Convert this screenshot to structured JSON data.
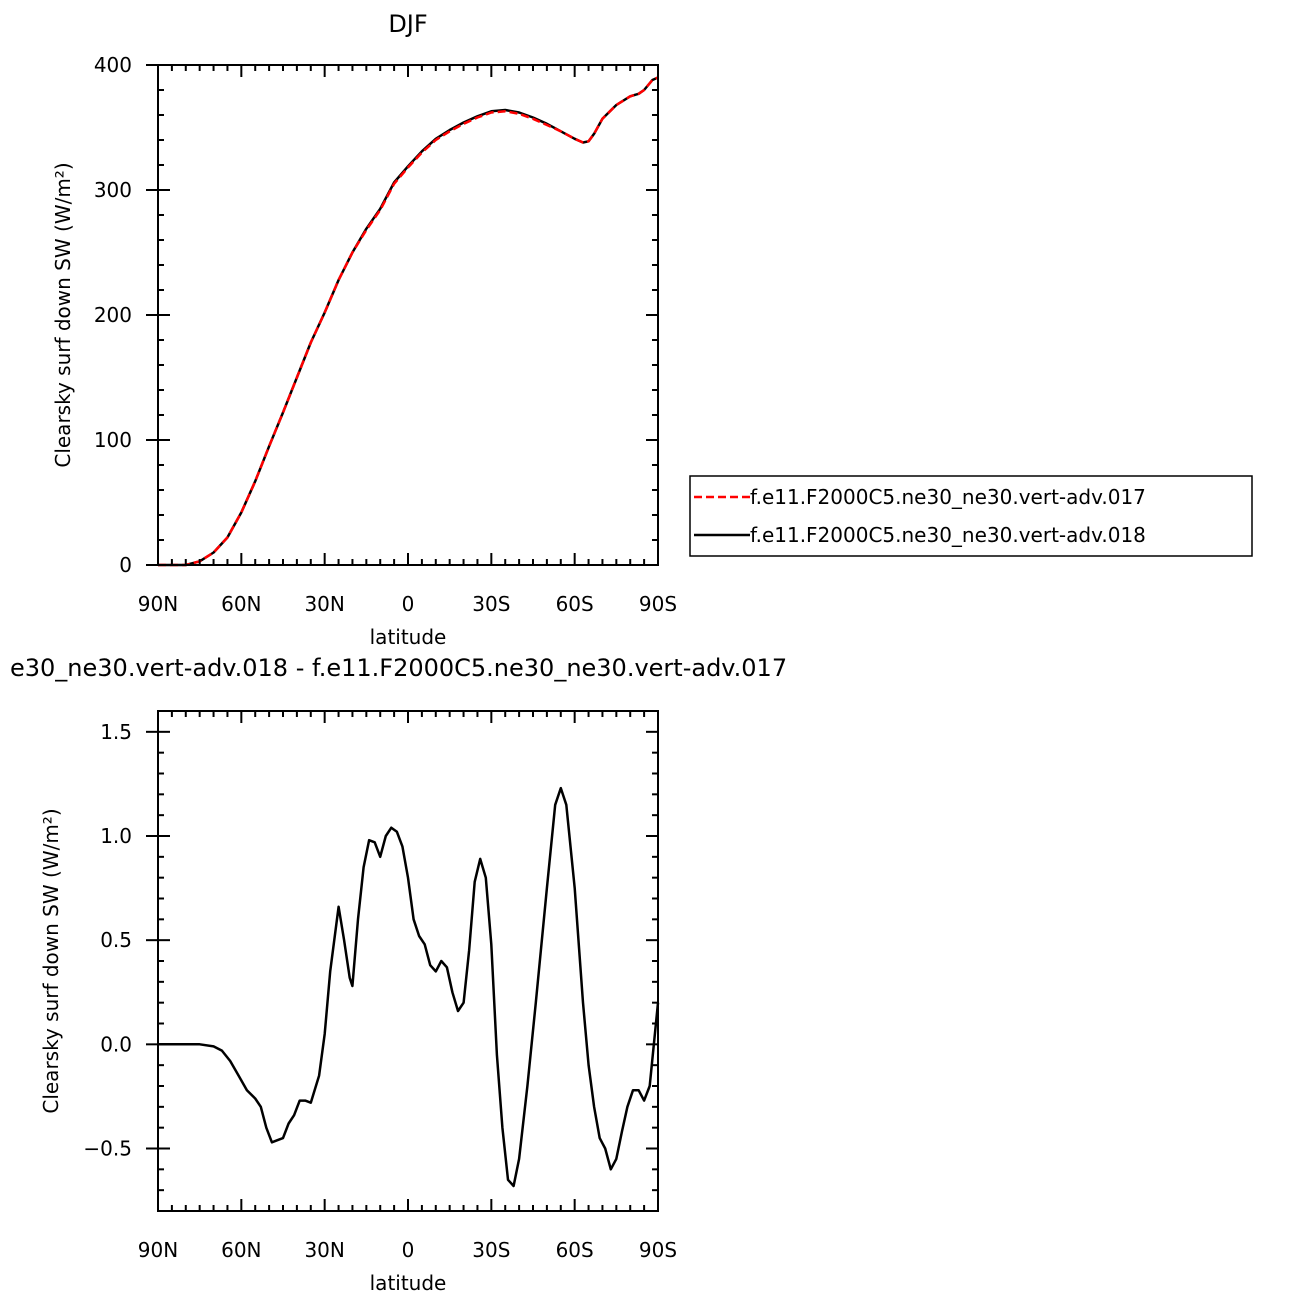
{
  "chart_data": [
    {
      "type": "line",
      "title": "DJF",
      "xlabel": "latitude",
      "ylabel": "Clearsky surf down SW (W/m²)",
      "xlim": [
        -90,
        90
      ],
      "ylim": [
        0,
        400
      ],
      "xticks": [
        -90,
        -60,
        -30,
        0,
        30,
        60,
        90
      ],
      "xtick_labels": [
        "90N",
        "60N",
        "30N",
        "0",
        "30S",
        "60S",
        "90S"
      ],
      "yticks": [
        0,
        100,
        200,
        300,
        400
      ],
      "ytick_labels": [
        "0",
        "100",
        "200",
        "300",
        "400"
      ],
      "legend_position": "right",
      "grid": false,
      "series": [
        {
          "name": "f.e11.F2000C5.ne30_ne30.vert-adv.017",
          "color": "#ff0000",
          "dash": "dashed",
          "x": [
            -90,
            -85,
            -80,
            -75,
            -70,
            -65,
            -60,
            -55,
            -50,
            -45,
            -40,
            -35,
            -30,
            -25,
            -20,
            -15,
            -10,
            -5,
            0,
            5,
            10,
            15,
            20,
            25,
            30,
            35,
            40,
            45,
            50,
            55,
            60,
            63,
            65,
            67,
            70,
            75,
            80,
            83,
            85,
            88,
            90
          ],
          "y": [
            0,
            0,
            0,
            3,
            10,
            22,
            42,
            67,
            95,
            122,
            150,
            178,
            202,
            228,
            250,
            268,
            284,
            305,
            318,
            330,
            340,
            347,
            353,
            358,
            362,
            363,
            361,
            357,
            352,
            347,
            341,
            338,
            339,
            345,
            357,
            368,
            375,
            377,
            380,
            388,
            390
          ]
        },
        {
          "name": "f.e11.F2000C5.ne30_ne30.vert-adv.018",
          "color": "#000000",
          "dash": "solid",
          "x": [
            -90,
            -85,
            -80,
            -75,
            -70,
            -65,
            -60,
            -55,
            -50,
            -45,
            -40,
            -35,
            -30,
            -25,
            -20,
            -15,
            -10,
            -5,
            0,
            5,
            10,
            15,
            20,
            25,
            30,
            35,
            40,
            45,
            50,
            55,
            60,
            63,
            65,
            67,
            70,
            75,
            80,
            83,
            85,
            88,
            90
          ],
          "y": [
            0,
            0,
            0,
            3,
            10,
            22,
            42,
            67,
            95,
            122,
            150,
            178,
            202,
            228,
            250,
            269,
            285,
            306,
            319,
            331,
            341,
            348,
            354,
            359,
            363,
            364,
            362,
            358,
            353,
            347,
            341,
            338,
            339,
            345,
            357,
            368,
            375,
            377,
            380,
            388,
            390
          ]
        }
      ]
    },
    {
      "type": "line",
      "title": "e30_ne30.vert-adv.018 - f.e11.F2000C5.ne30_ne30.vert-adv.017",
      "xlabel": "latitude",
      "ylabel": "Clearsky surf down SW (W/m²)",
      "xlim": [
        -90,
        90
      ],
      "ylim": [
        -0.8,
        1.6
      ],
      "xticks": [
        -90,
        -60,
        -30,
        0,
        30,
        60,
        90
      ],
      "xtick_labels": [
        "90N",
        "60N",
        "30N",
        "0",
        "30S",
        "60S",
        "90S"
      ],
      "yticks": [
        -0.5,
        0,
        0.5,
        1.0,
        1.5
      ],
      "ytick_labels": [
        "−0.5",
        "0.0",
        "0.5",
        "1.0",
        "1.5"
      ],
      "grid": false,
      "series": [
        {
          "color": "#000000",
          "dash": "solid",
          "x": [
            -90,
            -80,
            -75,
            -70,
            -67,
            -64,
            -61,
            -58,
            -55,
            -53,
            -51,
            -49,
            -47,
            -45,
            -43,
            -41,
            -39,
            -37,
            -35,
            -32,
            -30,
            -28,
            -25,
            -23,
            -21,
            -20,
            -18,
            -16,
            -14,
            -12,
            -10,
            -8,
            -6,
            -4,
            -2,
            0,
            2,
            4,
            6,
            8,
            10,
            12,
            14,
            16,
            18,
            20,
            22,
            24,
            26,
            28,
            30,
            32,
            34,
            36,
            38,
            40,
            43,
            46,
            50,
            53,
            55,
            57,
            60,
            63,
            65,
            67,
            69,
            71,
            73,
            75,
            77,
            79,
            81,
            83,
            85,
            87,
            90
          ],
          "y": [
            0,
            0,
            0,
            -0.01,
            -0.03,
            -0.08,
            -0.15,
            -0.22,
            -0.26,
            -0.3,
            -0.4,
            -0.47,
            -0.46,
            -0.45,
            -0.38,
            -0.34,
            -0.27,
            -0.27,
            -0.28,
            -0.15,
            0.05,
            0.35,
            0.66,
            0.5,
            0.32,
            0.28,
            0.6,
            0.85,
            0.98,
            0.97,
            0.9,
            1.0,
            1.04,
            1.02,
            0.95,
            0.8,
            0.6,
            0.52,
            0.48,
            0.38,
            0.35,
            0.4,
            0.37,
            0.25,
            0.16,
            0.2,
            0.45,
            0.78,
            0.89,
            0.8,
            0.48,
            -0.05,
            -0.4,
            -0.65,
            -0.68,
            -0.55,
            -0.2,
            0.2,
            0.75,
            1.15,
            1.23,
            1.15,
            0.75,
            0.2,
            -0.1,
            -0.3,
            -0.45,
            -0.5,
            -0.6,
            -0.55,
            -0.42,
            -0.3,
            -0.22,
            -0.22,
            -0.27,
            -0.2,
            0.2
          ]
        }
      ]
    }
  ]
}
